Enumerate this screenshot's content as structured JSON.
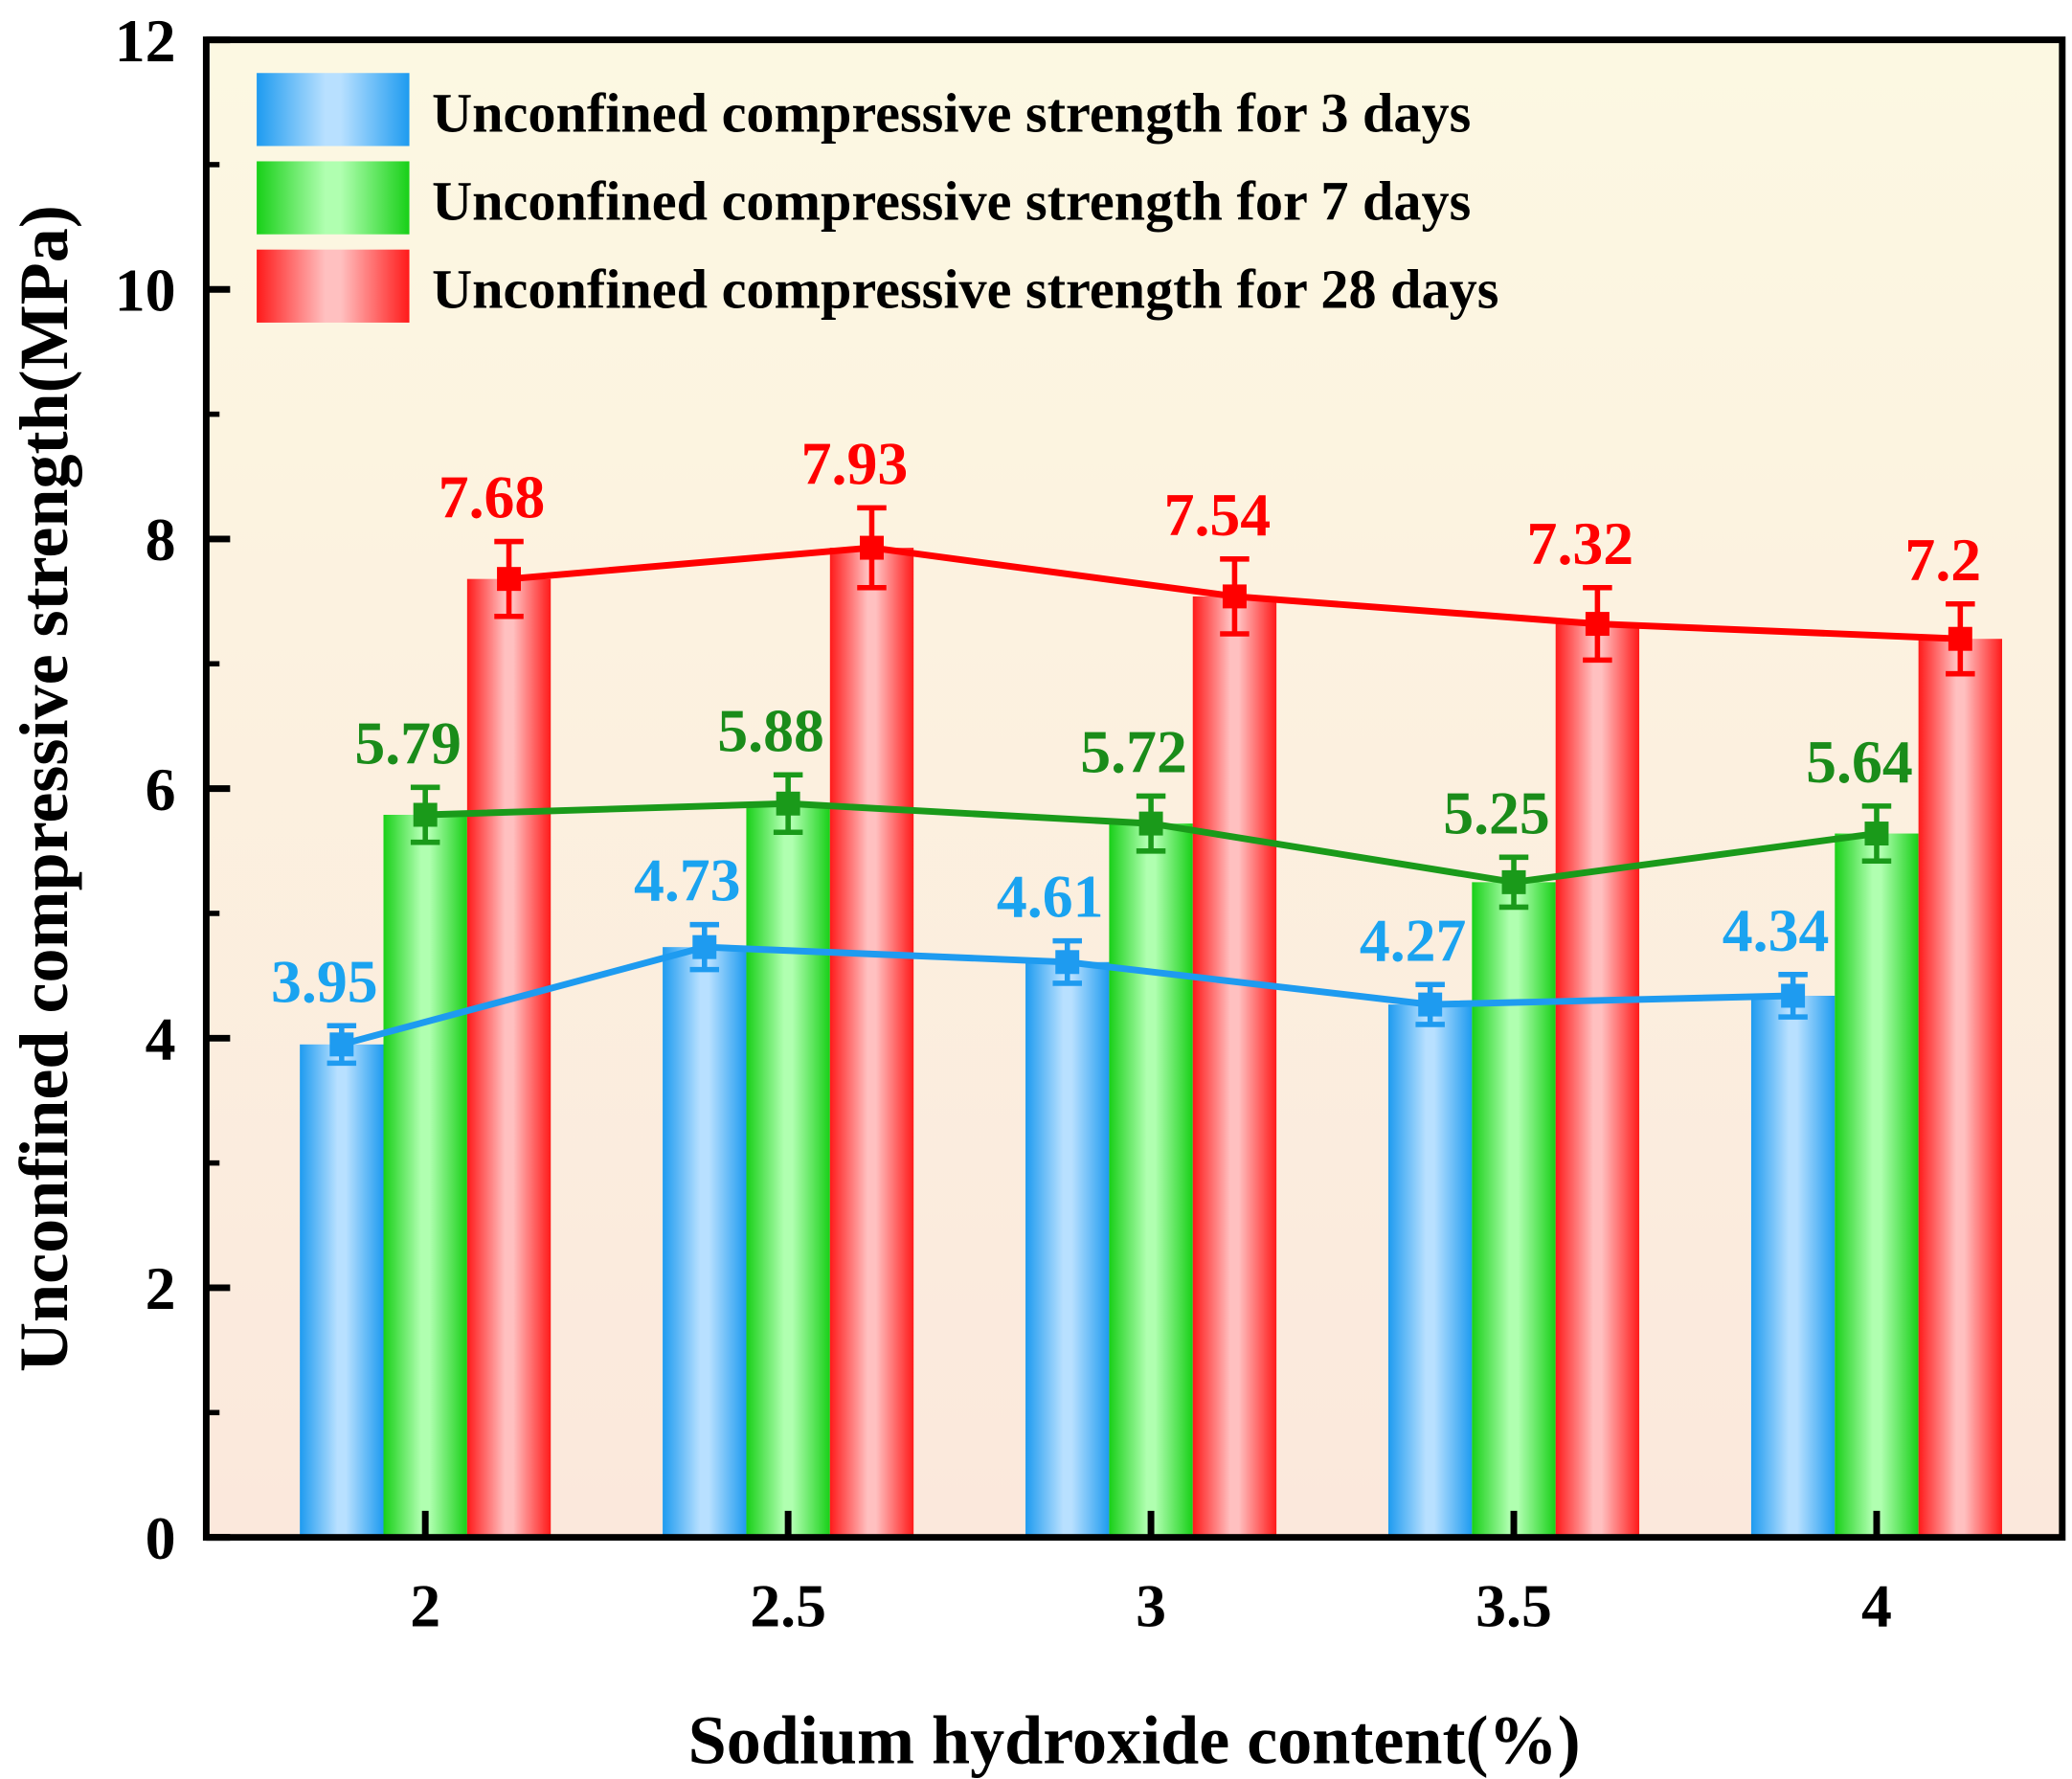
{
  "chart_data": {
    "type": "bar",
    "title": "",
    "xlabel": "Sodium hydroxide content(%)",
    "ylabel": "Unconfined compressive strength(MPa)",
    "categories": [
      "2",
      "2.5",
      "3",
      "3.5",
      "4"
    ],
    "ylim": [
      0,
      12
    ],
    "yticks": [
      "0",
      "2",
      "4",
      "6",
      "8",
      "10",
      "12"
    ],
    "legend_position": "top-left",
    "series": [
      {
        "name": "Unconfined compressive strength for 3 days",
        "values": [
          3.95,
          4.73,
          4.61,
          4.27,
          4.34
        ],
        "errors": [
          0.15,
          0.18,
          0.17,
          0.16,
          0.17
        ],
        "labels": [
          "3.95",
          "4.73",
          "4.61",
          "4.27",
          "4.34"
        ],
        "color": "#1e9bf0",
        "light": "#b8e0ff",
        "label_color": "#1aa3f0",
        "line_color": "#1e9bf0"
      },
      {
        "name": "Unconfined compressive strength for 7 days",
        "values": [
          5.79,
          5.88,
          5.72,
          5.25,
          5.64
        ],
        "errors": [
          0.22,
          0.23,
          0.22,
          0.2,
          0.22
        ],
        "labels": [
          "5.79",
          "5.88",
          "5.72",
          "5.25",
          "5.64"
        ],
        "color": "#18d018",
        "light": "#b0ffb0",
        "label_color": "#1a8c1a",
        "line_color": "#1a9a1a"
      },
      {
        "name": "Unconfined compressive strength for 28 days",
        "values": [
          7.68,
          7.93,
          7.54,
          7.32,
          7.2
        ],
        "errors": [
          0.3,
          0.32,
          0.3,
          0.29,
          0.28
        ],
        "labels": [
          "7.68",
          "7.93",
          "7.54",
          "7.32",
          "7.2"
        ],
        "color": "#ff1a1a",
        "light": "#ffc0c0",
        "label_color": "#ff0000",
        "line_color": "#ff0000"
      }
    ]
  }
}
